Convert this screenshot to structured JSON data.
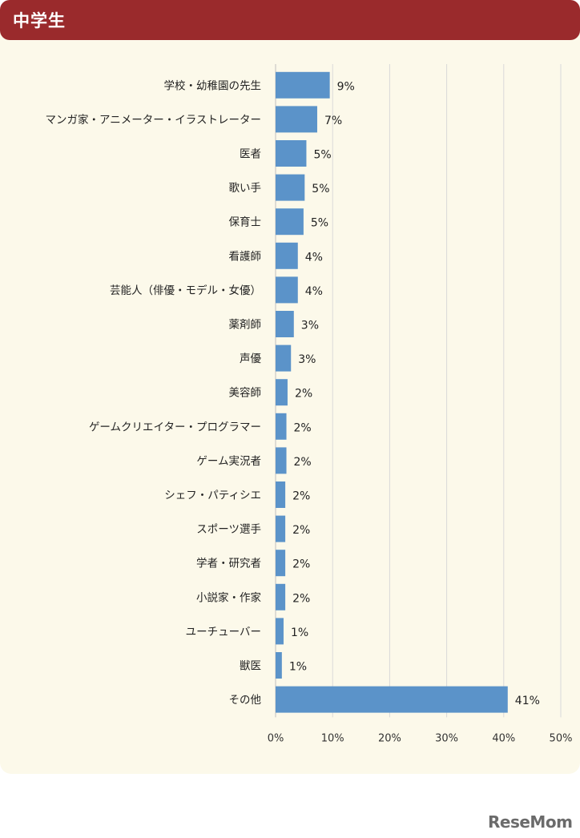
{
  "header": {
    "title": "中学生"
  },
  "chart_data": {
    "type": "bar",
    "orientation": "horizontal",
    "categories": [
      "学校・幼稚園の先生",
      "マンガ家・アニメーター・イラストレーター",
      "医者",
      "歌い手",
      "保育士",
      "看護師",
      "芸能人（俳優・モデル・女優）",
      "薬剤師",
      "声優",
      "美容師",
      "ゲームクリエイター・プログラマー",
      "ゲーム実況者",
      "シェフ・パティシエ",
      "スポーツ選手",
      "学者・研究者",
      "小説家・作家",
      "ユーチューバー",
      "獣医",
      "その他"
    ],
    "values": [
      9.5,
      7.3,
      5.4,
      5.1,
      4.9,
      3.9,
      3.9,
      3.2,
      2.7,
      2.1,
      1.9,
      1.9,
      1.7,
      1.7,
      1.7,
      1.7,
      1.4,
      1.1,
      40.7
    ],
    "data_labels": [
      "9%",
      "7%",
      "5%",
      "5%",
      "5%",
      "4%",
      "4%",
      "3%",
      "3%",
      "2%",
      "2%",
      "2%",
      "2%",
      "2%",
      "2%",
      "2%",
      "1%",
      "1%",
      "41%"
    ],
    "xlim": [
      0,
      50
    ],
    "xticks": [
      0,
      10,
      20,
      30,
      40,
      50
    ],
    "xtick_labels": [
      "0%",
      "10%",
      "20%",
      "30%",
      "40%",
      "50%"
    ],
    "grid": true,
    "bar_color": "#5b93c9",
    "grid_color": "#d9d9d9"
  },
  "logo": {
    "text": "ReseMom"
  }
}
